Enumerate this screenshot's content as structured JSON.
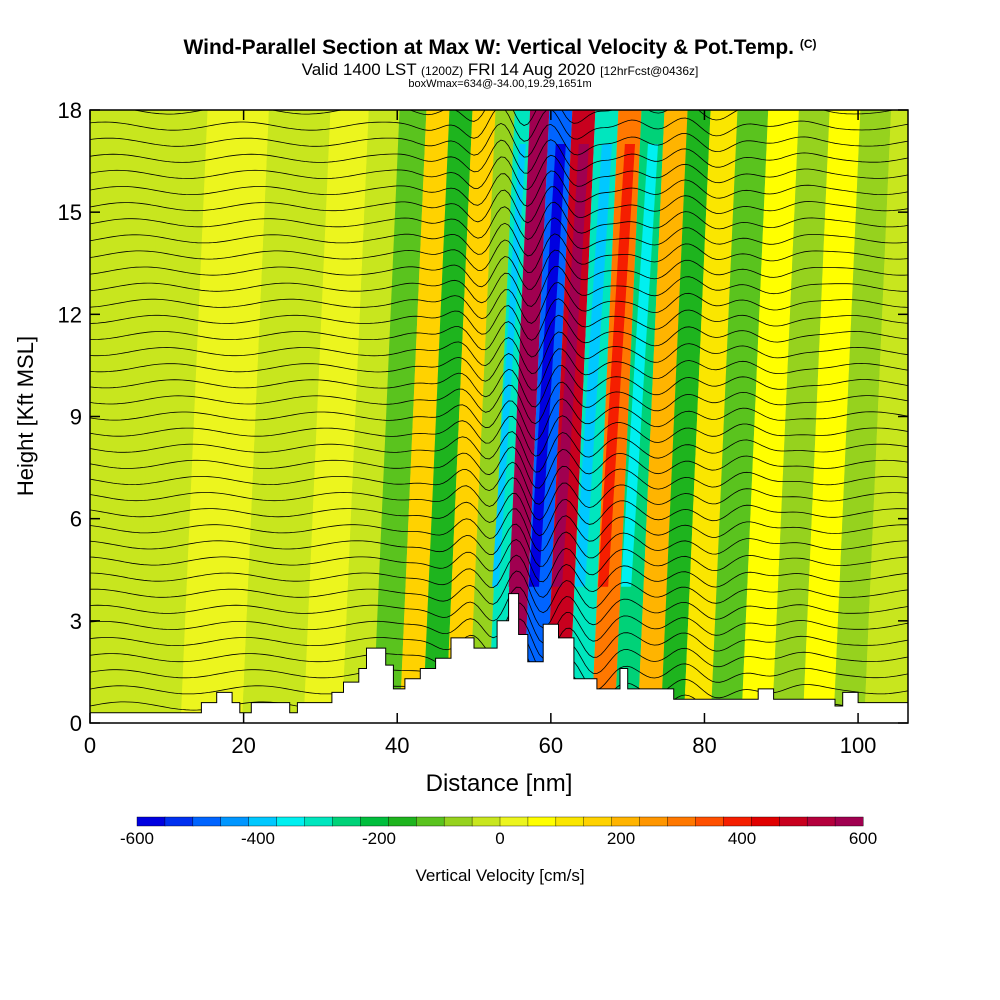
{
  "header": {
    "title": "Wind-Parallel Section at Max W: Vertical Velocity & Pot.Temp.",
    "title_mark": "(C)",
    "valid_prefix": "Valid 1400 LST",
    "valid_zulu": "(1200Z)",
    "valid_date": "FRI 14 Aug 2020",
    "valid_forecast": "[12hrFcst@0436z]",
    "subtitle": "boxWmax=634@-34.00,19.29,1651m"
  },
  "chart_data": {
    "type": "heatmap",
    "title": "Wind-Parallel Section at Max W: Vertical Velocity & Pot.Temp.",
    "xlabel": "Distance [nm]",
    "ylabel": "Height [Kft MSL]",
    "xlim": [
      0,
      106.5
    ],
    "ylim": [
      0,
      18
    ],
    "x_ticks": [
      0,
      20,
      40,
      60,
      80,
      100
    ],
    "y_ticks": [
      0,
      3,
      6,
      9,
      12,
      15,
      18
    ],
    "colorbar": {
      "label": "Vertical Velocity [cm/s]",
      "min": -600,
      "max": 600,
      "ticks": [
        -600,
        -400,
        -200,
        0,
        200,
        400,
        600
      ],
      "colors": [
        "#0000e0",
        "#0030f0",
        "#0064ff",
        "#0096ff",
        "#00c8ff",
        "#00f0f0",
        "#00e6be",
        "#00d278",
        "#00be3c",
        "#1eb41e",
        "#5ac31e",
        "#96d21e",
        "#c8e61e",
        "#ecf51e",
        "#ffff00",
        "#fae600",
        "#ffd200",
        "#ffb400",
        "#ff9600",
        "#ff7800",
        "#ff5000",
        "#f51e00",
        "#e00000",
        "#c8001e",
        "#b4003c",
        "#a00050"
      ]
    },
    "updraft_max_cm_s": 634,
    "updraft_center_nm": 56,
    "wave_bands": [
      {
        "x_nm": 4,
        "w_cm_s": -20
      },
      {
        "x_nm": 10,
        "w_cm_s": -15
      },
      {
        "x_nm": 16,
        "w_cm_s": 10
      },
      {
        "x_nm": 26,
        "w_cm_s": -15
      },
      {
        "x_nm": 32,
        "w_cm_s": 40
      },
      {
        "x_nm": 36,
        "w_cm_s": -40
      },
      {
        "x_nm": 40,
        "w_cm_s": -120
      },
      {
        "x_nm": 43,
        "w_cm_s": 150
      },
      {
        "x_nm": 46,
        "w_cm_s": -150
      },
      {
        "x_nm": 49,
        "w_cm_s": 150
      },
      {
        "x_nm": 52,
        "w_cm_s": -80
      },
      {
        "x_nm": 54,
        "w_cm_s": -300
      },
      {
        "x_nm": 56,
        "w_cm_s": 634
      },
      {
        "x_nm": 59,
        "w_cm_s": -500
      },
      {
        "x_nm": 62,
        "w_cm_s": 500
      },
      {
        "x_nm": 65,
        "w_cm_s": -300
      },
      {
        "x_nm": 68,
        "w_cm_s": 300
      },
      {
        "x_nm": 71,
        "w_cm_s": -250
      },
      {
        "x_nm": 74,
        "w_cm_s": 200
      },
      {
        "x_nm": 77,
        "w_cm_s": -150
      },
      {
        "x_nm": 80,
        "w_cm_s": 120
      },
      {
        "x_nm": 84,
        "w_cm_s": -100
      },
      {
        "x_nm": 88,
        "w_cm_s": 80
      },
      {
        "x_nm": 92,
        "w_cm_s": -80
      },
      {
        "x_nm": 96,
        "w_cm_s": 60
      },
      {
        "x_nm": 100,
        "w_cm_s": -60
      },
      {
        "x_nm": 104,
        "w_cm_s": -40
      }
    ],
    "terrain_kft": [
      {
        "x_nm": 0,
        "h": 0.3
      },
      {
        "x_nm": 14.5,
        "h": 0.3
      },
      {
        "x_nm": 14.5,
        "h": 0.6
      },
      {
        "x_nm": 16.5,
        "h": 0.6
      },
      {
        "x_nm": 16.5,
        "h": 0.9
      },
      {
        "x_nm": 18.5,
        "h": 0.9
      },
      {
        "x_nm": 18.5,
        "h": 0.6
      },
      {
        "x_nm": 19.5,
        "h": 0.6
      },
      {
        "x_nm": 19.5,
        "h": 0.3
      },
      {
        "x_nm": 21,
        "h": 0.3
      },
      {
        "x_nm": 21,
        "h": 0.6
      },
      {
        "x_nm": 26,
        "h": 0.6
      },
      {
        "x_nm": 26,
        "h": 0.3
      },
      {
        "x_nm": 27,
        "h": 0.3
      },
      {
        "x_nm": 27,
        "h": 0.6
      },
      {
        "x_nm": 31.5,
        "h": 0.6
      },
      {
        "x_nm": 31.5,
        "h": 0.9
      },
      {
        "x_nm": 33,
        "h": 0.9
      },
      {
        "x_nm": 33,
        "h": 1.2
      },
      {
        "x_nm": 35,
        "h": 1.2
      },
      {
        "x_nm": 35,
        "h": 1.6
      },
      {
        "x_nm": 36,
        "h": 1.6
      },
      {
        "x_nm": 36,
        "h": 2.2
      },
      {
        "x_nm": 38.5,
        "h": 2.2
      },
      {
        "x_nm": 38.5,
        "h": 1.7
      },
      {
        "x_nm": 39.5,
        "h": 1.7
      },
      {
        "x_nm": 39.5,
        "h": 1.0
      },
      {
        "x_nm": 41,
        "h": 1.0
      },
      {
        "x_nm": 41,
        "h": 1.3
      },
      {
        "x_nm": 43,
        "h": 1.3
      },
      {
        "x_nm": 43,
        "h": 1.6
      },
      {
        "x_nm": 45,
        "h": 1.6
      },
      {
        "x_nm": 45,
        "h": 1.9
      },
      {
        "x_nm": 47,
        "h": 1.9
      },
      {
        "x_nm": 47,
        "h": 2.5
      },
      {
        "x_nm": 50,
        "h": 2.5
      },
      {
        "x_nm": 50,
        "h": 2.2
      },
      {
        "x_nm": 53,
        "h": 2.2
      },
      {
        "x_nm": 53,
        "h": 3.0
      },
      {
        "x_nm": 54.5,
        "h": 3.0
      },
      {
        "x_nm": 54.5,
        "h": 3.8
      },
      {
        "x_nm": 55.8,
        "h": 3.8
      },
      {
        "x_nm": 55.8,
        "h": 2.6
      },
      {
        "x_nm": 57,
        "h": 2.6
      },
      {
        "x_nm": 57,
        "h": 1.8
      },
      {
        "x_nm": 59,
        "h": 1.8
      },
      {
        "x_nm": 59,
        "h": 2.9
      },
      {
        "x_nm": 61,
        "h": 2.9
      },
      {
        "x_nm": 61,
        "h": 2.5
      },
      {
        "x_nm": 63,
        "h": 2.5
      },
      {
        "x_nm": 63,
        "h": 1.3
      },
      {
        "x_nm": 66,
        "h": 1.3
      },
      {
        "x_nm": 66,
        "h": 1.0
      },
      {
        "x_nm": 69,
        "h": 1.0
      },
      {
        "x_nm": 69,
        "h": 1.6
      },
      {
        "x_nm": 70,
        "h": 1.6
      },
      {
        "x_nm": 70,
        "h": 1.0
      },
      {
        "x_nm": 76,
        "h": 1.0
      },
      {
        "x_nm": 76,
        "h": 0.7
      },
      {
        "x_nm": 87,
        "h": 0.7
      },
      {
        "x_nm": 87,
        "h": 1.0
      },
      {
        "x_nm": 89,
        "h": 1.0
      },
      {
        "x_nm": 89,
        "h": 0.7
      },
      {
        "x_nm": 97,
        "h": 0.7
      },
      {
        "x_nm": 97,
        "h": 0.5
      },
      {
        "x_nm": 98,
        "h": 0.5
      },
      {
        "x_nm": 98,
        "h": 0.9
      },
      {
        "x_nm": 100,
        "h": 0.9
      },
      {
        "x_nm": 100,
        "h": 0.6
      },
      {
        "x_nm": 106.5,
        "h": 0.6
      }
    ],
    "isentrope_count": 38
  }
}
